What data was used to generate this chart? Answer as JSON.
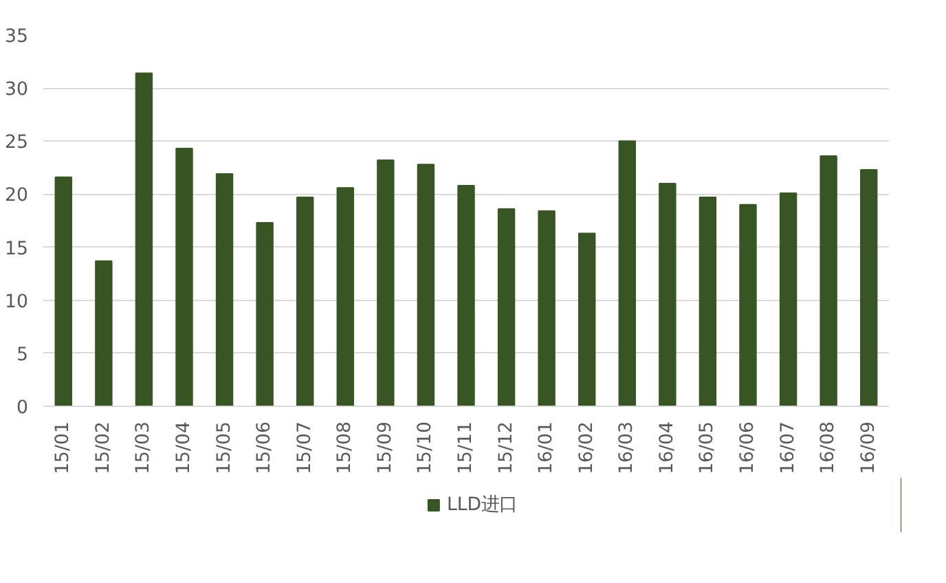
{
  "chart_data": {
    "type": "bar",
    "categories": [
      "15/01",
      "15/02",
      "15/03",
      "15/04",
      "15/05",
      "15/06",
      "15/07",
      "15/08",
      "15/09",
      "15/10",
      "15/11",
      "15/12",
      "16/01",
      "16/02",
      "16/03",
      "16/04",
      "16/05",
      "16/06",
      "16/07",
      "16/08",
      "16/09"
    ],
    "series": [
      {
        "name": "LLD进口",
        "color": "#375623",
        "values": [
          21.6,
          13.7,
          31.4,
          24.3,
          21.9,
          17.3,
          19.7,
          20.6,
          23.2,
          22.8,
          20.8,
          18.6,
          18.4,
          16.3,
          25.0,
          21.0,
          19.7,
          19.0,
          20.1,
          23.6,
          22.3
        ]
      }
    ],
    "ylim": [
      0,
      35
    ],
    "yticks": [
      0,
      5,
      10,
      15,
      20,
      25,
      30,
      35
    ],
    "grid": "y",
    "legend": "bottom"
  }
}
